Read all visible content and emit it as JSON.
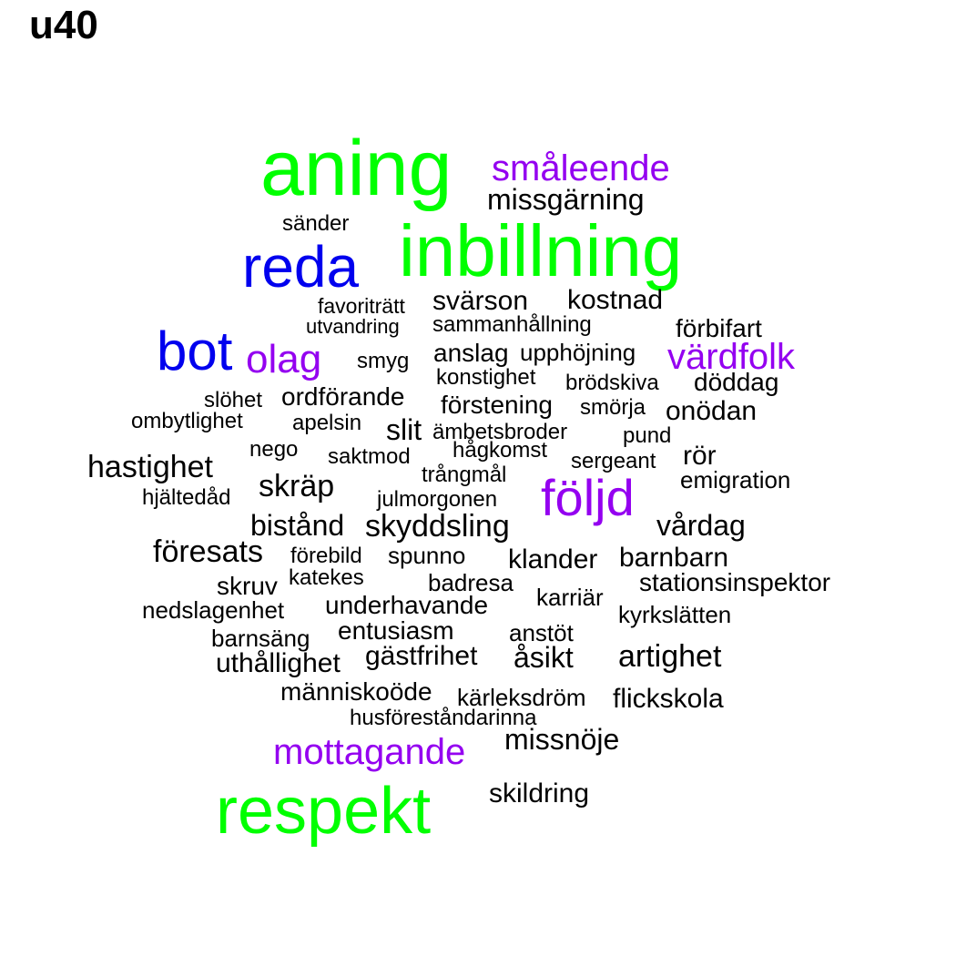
{
  "title": "u40",
  "colors": {
    "green": "#00ff00",
    "blue": "#0000ee",
    "purple": "#9400f0",
    "black": "#000000"
  },
  "words": [
    {
      "text": "aning",
      "color": "green"
    },
    {
      "text": "småleende",
      "color": "purple"
    },
    {
      "text": "missgärning",
      "color": "black"
    },
    {
      "text": "sänder",
      "color": "black"
    },
    {
      "text": "inbillning",
      "color": "green"
    },
    {
      "text": "reda",
      "color": "blue"
    },
    {
      "text": "favoriträtt",
      "color": "black"
    },
    {
      "text": "svärson",
      "color": "black"
    },
    {
      "text": "kostnad",
      "color": "black"
    },
    {
      "text": "utvandring",
      "color": "black"
    },
    {
      "text": "sammanhållning",
      "color": "black"
    },
    {
      "text": "förbifart",
      "color": "black"
    },
    {
      "text": "bot",
      "color": "blue"
    },
    {
      "text": "olag",
      "color": "purple"
    },
    {
      "text": "smyg",
      "color": "black"
    },
    {
      "text": "anslag",
      "color": "black"
    },
    {
      "text": "upphöjning",
      "color": "black"
    },
    {
      "text": "värdfolk",
      "color": "purple"
    },
    {
      "text": "konstighet",
      "color": "black"
    },
    {
      "text": "brödskiva",
      "color": "black"
    },
    {
      "text": "döddag",
      "color": "black"
    },
    {
      "text": "slöhet",
      "color": "black"
    },
    {
      "text": "ordförande",
      "color": "black"
    },
    {
      "text": "förstening",
      "color": "black"
    },
    {
      "text": "smörja",
      "color": "black"
    },
    {
      "text": "onödan",
      "color": "black"
    },
    {
      "text": "ombytlighet",
      "color": "black"
    },
    {
      "text": "apelsin",
      "color": "black"
    },
    {
      "text": "slit",
      "color": "black"
    },
    {
      "text": "ämbetsbroder",
      "color": "black"
    },
    {
      "text": "pund",
      "color": "black"
    },
    {
      "text": "nego",
      "color": "black"
    },
    {
      "text": "hågkomst",
      "color": "black"
    },
    {
      "text": "saktmod",
      "color": "black"
    },
    {
      "text": "rör",
      "color": "black"
    },
    {
      "text": "sergeant",
      "color": "black"
    },
    {
      "text": "hastighet",
      "color": "black"
    },
    {
      "text": "trångmål",
      "color": "black"
    },
    {
      "text": "emigration",
      "color": "black"
    },
    {
      "text": "skräp",
      "color": "black"
    },
    {
      "text": "följd",
      "color": "purple"
    },
    {
      "text": "hjältedåd",
      "color": "black"
    },
    {
      "text": "julmorgonen",
      "color": "black"
    },
    {
      "text": "vårdag",
      "color": "black"
    },
    {
      "text": "bistånd",
      "color": "black"
    },
    {
      "text": "skyddsling",
      "color": "black"
    },
    {
      "text": "föresats",
      "color": "black"
    },
    {
      "text": "förebild",
      "color": "black"
    },
    {
      "text": "spunno",
      "color": "black"
    },
    {
      "text": "klander",
      "color": "black"
    },
    {
      "text": "barnbarn",
      "color": "black"
    },
    {
      "text": "katekes",
      "color": "black"
    },
    {
      "text": "skruv",
      "color": "black"
    },
    {
      "text": "badresa",
      "color": "black"
    },
    {
      "text": "stationsinspektor",
      "color": "black"
    },
    {
      "text": "karriär",
      "color": "black"
    },
    {
      "text": "nedslagenhet",
      "color": "black"
    },
    {
      "text": "underhavande",
      "color": "black"
    },
    {
      "text": "kyrkslätten",
      "color": "black"
    },
    {
      "text": "entusiasm",
      "color": "black"
    },
    {
      "text": "barnsäng",
      "color": "black"
    },
    {
      "text": "anstöt",
      "color": "black"
    },
    {
      "text": "gästfrihet",
      "color": "black"
    },
    {
      "text": "åsikt",
      "color": "black"
    },
    {
      "text": "artighet",
      "color": "black"
    },
    {
      "text": "uthållighet",
      "color": "black"
    },
    {
      "text": "människoöde",
      "color": "black"
    },
    {
      "text": "kärleksdröm",
      "color": "black"
    },
    {
      "text": "flickskola",
      "color": "black"
    },
    {
      "text": "husföreståndarinna",
      "color": "black"
    },
    {
      "text": "missnöje",
      "color": "black"
    },
    {
      "text": "mottagande",
      "color": "purple"
    },
    {
      "text": "skildring",
      "color": "black"
    },
    {
      "text": "respekt",
      "color": "green"
    }
  ]
}
